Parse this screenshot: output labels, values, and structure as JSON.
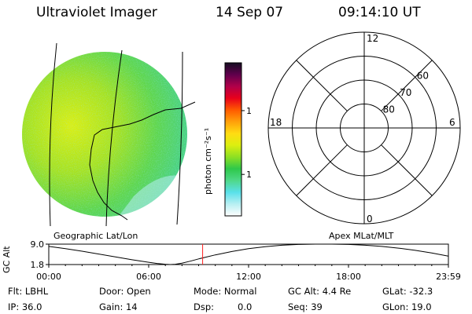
{
  "header": {
    "instrument": "Ultraviolet Imager",
    "date": "14 Sep 07",
    "time": "09:14:10 UT"
  },
  "colorbar": {
    "label": "photon cm⁻²s⁻¹",
    "ticks": [
      {
        "label": "100",
        "value": 100
      },
      {
        "label": "10",
        "value": 10
      }
    ],
    "colors": [
      "#ffffff",
      "#b8eff2",
      "#59e0ea",
      "#4fd889",
      "#2ec84a",
      "#8ee023",
      "#dcef10",
      "#ffdc12",
      "#ffa00a",
      "#ff5a00",
      "#e8001b",
      "#b0004a",
      "#60004c",
      "#150d22"
    ]
  },
  "left_panel": {
    "caption": "Geographic Lat/Lon"
  },
  "right_panel": {
    "caption": "Apex MLat/MLT",
    "mlt_labels": [
      {
        "label": "12",
        "mlt": 12
      },
      {
        "label": "18",
        "mlt": 18
      },
      {
        "label": "6",
        "mlt": 6
      },
      {
        "label": "0",
        "mlt": 0
      }
    ],
    "lat_labels": [
      {
        "label": "60",
        "lat": 60
      },
      {
        "label": "70",
        "lat": 70
      },
      {
        "label": "80",
        "lat": 80
      }
    ]
  },
  "chart_data": {
    "type": "line",
    "ylabel": "GC Alt",
    "yticks": [
      "9.0",
      "1.8"
    ],
    "ylim": [
      1.8,
      9.0
    ],
    "xticks": [
      "00:00",
      "06:00",
      "12:00",
      "18:00",
      "23:59"
    ],
    "xlim": [
      0,
      24
    ],
    "series": [
      {
        "x": [
          0,
          1,
          2,
          3,
          4,
          5,
          6,
          6.5,
          7,
          7.3,
          7.6,
          8,
          8.5,
          9,
          10,
          11,
          12,
          13,
          14,
          15,
          16,
          17,
          18,
          19,
          20,
          21,
          22,
          23,
          23.99
        ],
        "values": [
          8.2,
          7.4,
          6.5,
          5.5,
          4.5,
          3.5,
          2.6,
          2.2,
          1.9,
          1.8,
          1.9,
          2.3,
          3.0,
          3.8,
          5.2,
          6.4,
          7.4,
          8.1,
          8.6,
          8.9,
          9.0,
          9.0,
          8.9,
          8.6,
          8.2,
          7.6,
          6.8,
          5.9,
          4.8
        ]
      }
    ],
    "current_time": 9.24,
    "current_time_color": "#ff2020"
  },
  "footer": {
    "flt": "Flt: LBHL",
    "ip": "IP: 36.0",
    "door": "Door: Open",
    "gain": "Gain: 14",
    "mode": "Mode: Normal",
    "dsp": "Dsp:",
    "dsp_value": "0.0",
    "gcalt": "GC Alt: 4.4 Re",
    "seq": "Seq: 39",
    "glat": "GLat: -32.3",
    "glon": "GLon: 19.0"
  }
}
